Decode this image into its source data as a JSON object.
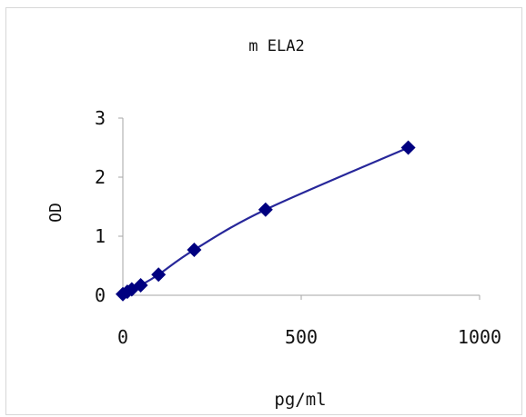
{
  "chart_data": {
    "type": "line",
    "title": "m ELA2",
    "xlabel": "pg/ml",
    "ylabel": "OD",
    "xlim": [
      0,
      1000
    ],
    "ylim": [
      0,
      3
    ],
    "xticks": [
      0,
      500,
      1000
    ],
    "yticks": [
      0,
      1,
      2,
      3
    ],
    "xtick_labels": [
      "0",
      "500",
      "1000"
    ],
    "ytick_labels": [
      "0",
      "1",
      "2",
      "3"
    ],
    "grid": false,
    "legend": "none",
    "series": [
      {
        "marker": "diamond",
        "color": "#000080",
        "line_color": "#27279a",
        "x": [
          0,
          12.5,
          25,
          50,
          100,
          200,
          400,
          800
        ],
        "y": [
          0.02,
          0.06,
          0.1,
          0.17,
          0.35,
          0.77,
          1.45,
          2.5
        ]
      }
    ]
  }
}
